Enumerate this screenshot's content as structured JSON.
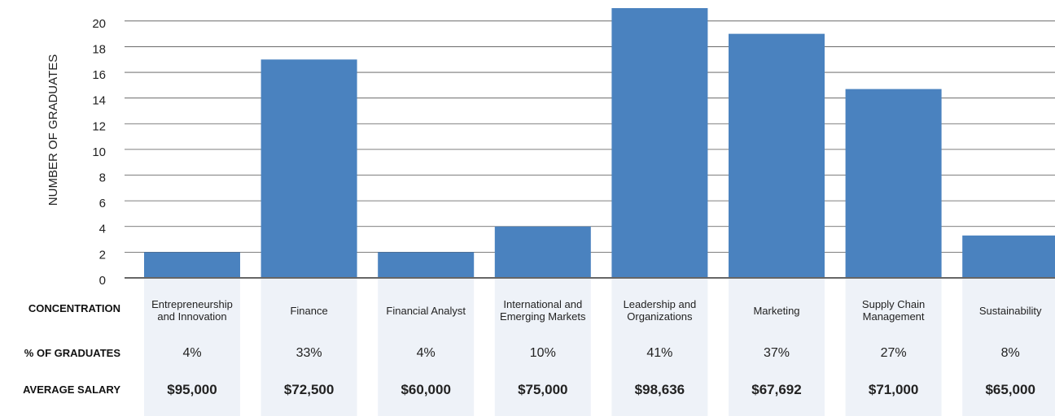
{
  "chart_data": {
    "type": "bar",
    "y_label": "NUMBER OF GRADUATES",
    "categories": [
      "Entrepreneurship and Innovation",
      "Finance",
      "Financial Analyst",
      "International and Emerging Markets",
      "Leadership and Organizations",
      "Marketing",
      "Supply Chain Management",
      "Sustainability"
    ],
    "values": [
      2,
      17,
      2,
      4,
      21,
      19,
      14.7,
      3.3
    ],
    "color": "#4a82bf",
    "ylim": [
      0,
      21
    ],
    "yticks": [
      0,
      2,
      4,
      6,
      8,
      10,
      12,
      14,
      16,
      18,
      20
    ],
    "grid": true,
    "category_row_label": "CONCENTRATION",
    "rows": [
      {
        "label": "% OF GRADUATES",
        "values": [
          4,
          33,
          4,
          10,
          41,
          37,
          27,
          8
        ],
        "value_labels": [
          "4%",
          "33%",
          "4%",
          "10%",
          "41%",
          "37%",
          "27%",
          "8%"
        ]
      },
      {
        "label": "AVERAGE SALARY",
        "values": [
          95000,
          72500,
          60000,
          75000,
          98636,
          67692,
          71000,
          65000
        ],
        "value_labels": [
          "$95,000",
          "$72,500",
          "$60,000",
          "$75,000",
          "$98,636",
          "$67,692",
          "$71,000",
          "$65,000"
        ]
      }
    ]
  }
}
